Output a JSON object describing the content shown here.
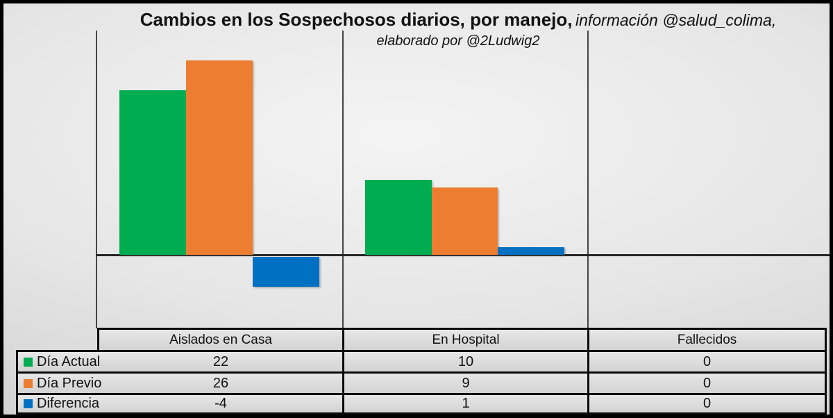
{
  "title": {
    "main": "Cambios en los Sospechosos diarios, por manejo,",
    "credit": " información @salud_colima,",
    "credit_line2": "elaborado por @2Ludwig2"
  },
  "colors": {
    "dia_actual": "#00AC50",
    "dia_previo": "#ED7D31",
    "diferencia": "#0070C3",
    "axis_line": "#454545",
    "zero_line": "#262626",
    "table_border": "#0b0b0b"
  },
  "chart_data": {
    "type": "bar",
    "title": "Cambios en los Sospechosos diarios, por manejo, información @salud_colima, elaborado por @2Ludwig2",
    "categories": [
      "Aislados en Casa",
      "En Hospital",
      "Fallecidos"
    ],
    "series": [
      {
        "name": "Día Actual",
        "color": "#00AC50",
        "values": [
          22,
          10,
          0
        ]
      },
      {
        "name": "Día Previo",
        "color": "#ED7D31",
        "values": [
          26,
          9,
          0
        ]
      },
      {
        "name": "Diferencia",
        "color": "#0070C3",
        "values": [
          -4,
          1,
          0
        ]
      }
    ],
    "ylim": [
      -10,
      30
    ],
    "grid": false,
    "legend_position": "table-rows-left",
    "xlabel": "",
    "ylabel": ""
  },
  "table": {
    "columns": [
      "Aislados en Casa",
      "En Hospital",
      "Fallecidos"
    ],
    "rows": [
      {
        "label": "Día Actual",
        "values": [
          "22",
          "10",
          "0"
        ]
      },
      {
        "label": "Día Previo",
        "values": [
          "26",
          "9",
          "0"
        ]
      },
      {
        "label": "Diferencia",
        "values": [
          "-4",
          "1",
          "0"
        ]
      }
    ]
  }
}
